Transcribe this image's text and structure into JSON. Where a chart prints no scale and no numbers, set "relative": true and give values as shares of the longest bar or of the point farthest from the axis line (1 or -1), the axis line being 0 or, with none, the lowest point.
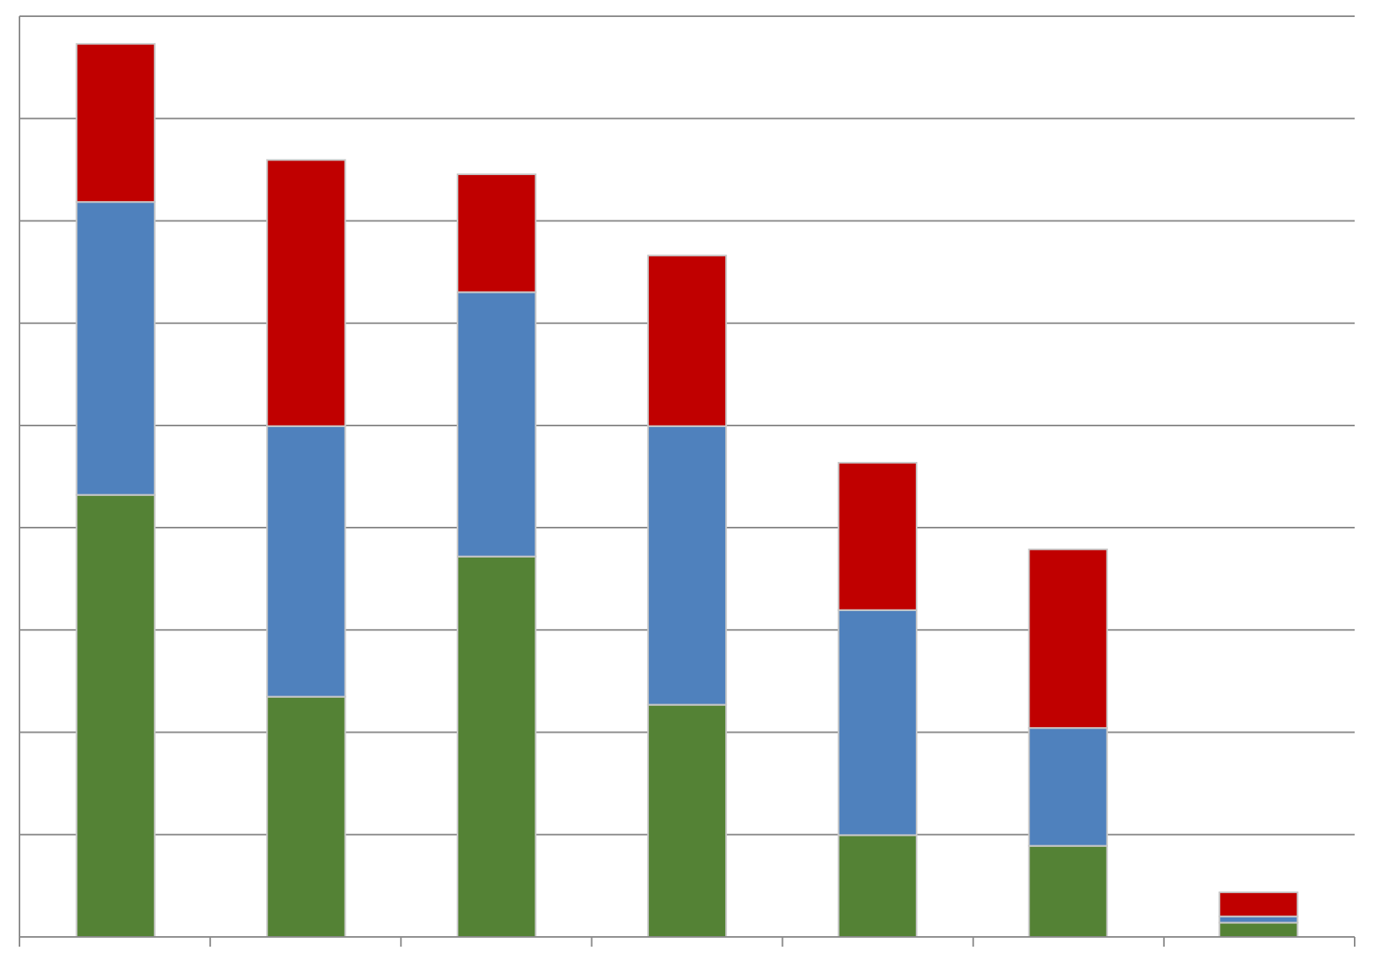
{
  "chart_data": {
    "type": "bar",
    "relative": true,
    "stacked": true,
    "grid": "y",
    "categories": [
      null,
      null,
      null,
      null,
      null,
      null,
      null
    ],
    "series": [
      {
        "color": "#548235",
        "values": [
          0.495,
          0.269,
          0.426,
          0.26,
          0.114,
          0.102,
          0.016
        ]
      },
      {
        "color": "#4f81bd",
        "values": [
          0.328,
          0.303,
          0.296,
          0.312,
          0.252,
          0.132,
          0.007
        ]
      },
      {
        "color": "#c00000",
        "values": [
          0.177,
          0.298,
          0.132,
          0.191,
          0.165,
          0.2,
          0.027
        ]
      }
    ]
  }
}
